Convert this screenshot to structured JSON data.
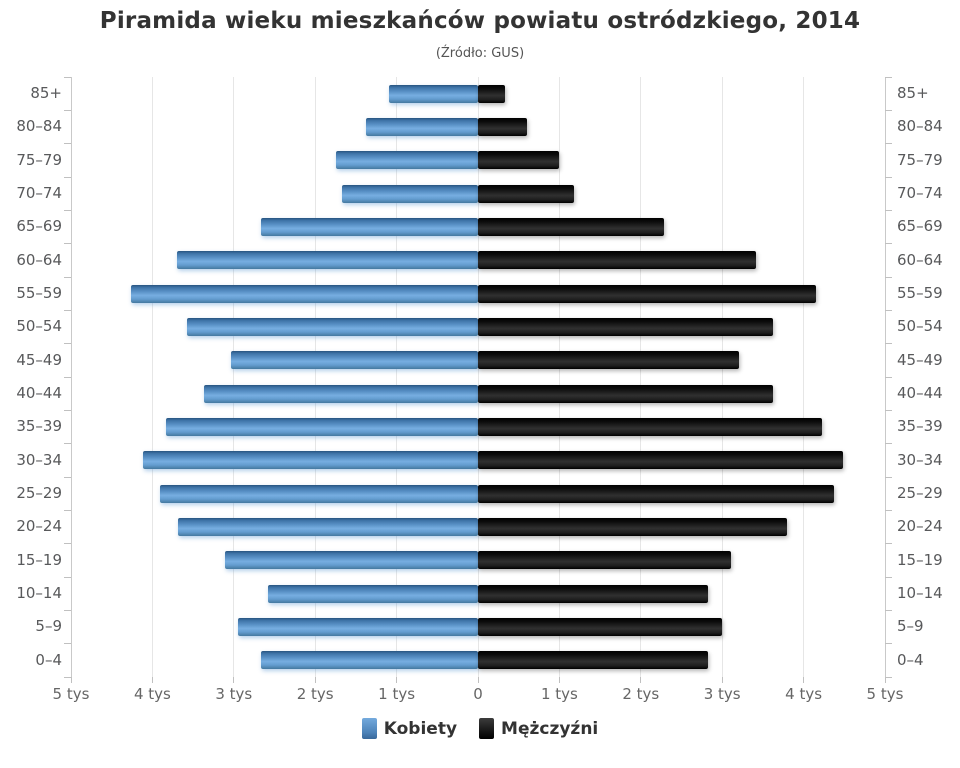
{
  "title": "Piramida wieku mieszkańców powiatu ostródzkiego, 2014",
  "subtitle": "(Źródło: GUS)",
  "legend": {
    "female": "Kobiety",
    "male": "Mężczyźni"
  },
  "colors": {
    "female_bar": "#4f87bd",
    "male_bar": "#1a1a1a",
    "gridline": "#e6e6e6",
    "axis_line": "#c9c9c9",
    "age_label": "#58595b",
    "axis_label": "#666666",
    "title_text": "#333333"
  },
  "chart_data": {
    "type": "bar",
    "subtype": "population-pyramid",
    "title": "Piramida wieku mieszkańców powiatu ostródzkiego, 2014",
    "subtitle": "(Źródło: GUS)",
    "categories": [
      "85+",
      "80–84",
      "75–79",
      "70–74",
      "65–69",
      "60–64",
      "55–59",
      "50–54",
      "45–49",
      "40–44",
      "35–39",
      "30–34",
      "25–29",
      "20–24",
      "15–19",
      "10–14",
      "5–9",
      "0–4"
    ],
    "series": [
      {
        "name": "Kobiety",
        "side": "left",
        "color": "#4f87bd",
        "values": [
          1090,
          1370,
          1750,
          1670,
          2660,
          3700,
          4260,
          3570,
          3040,
          3370,
          3830,
          4110,
          3910,
          3690,
          3110,
          2580,
          2950,
          2660
        ]
      },
      {
        "name": "Mężczyźni",
        "side": "right",
        "color": "#1a1a1a",
        "values": [
          330,
          600,
          990,
          1180,
          2280,
          3420,
          4150,
          3630,
          3210,
          3630,
          4230,
          4480,
          4370,
          3800,
          3110,
          2820,
          3000,
          2830
        ]
      }
    ],
    "x_axis": {
      "max": 5000,
      "tick_interval": 1000,
      "unit": "tys",
      "tick_labels": [
        "5 tys",
        "4 tys",
        "3 tys",
        "2 tys",
        "1 tys",
        "0",
        "1 tys",
        "2 tys",
        "3 tys",
        "4 tys",
        "5 tys"
      ]
    },
    "legend_position": "bottom",
    "grid": true
  }
}
